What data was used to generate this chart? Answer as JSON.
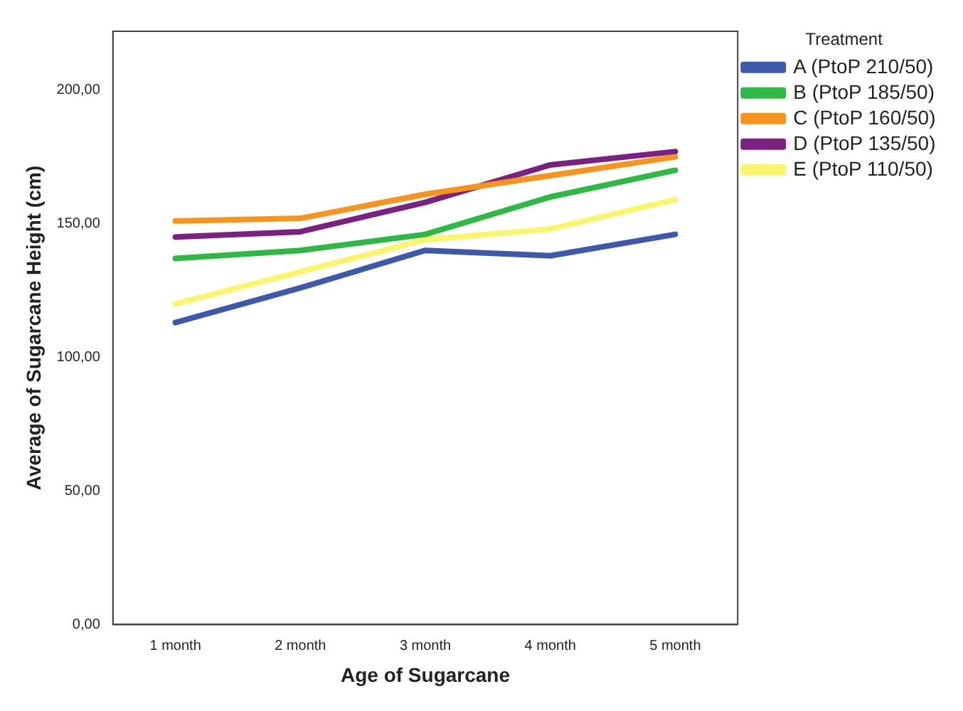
{
  "chart_data": {
    "type": "line",
    "xlabel": "Age of Sugarcane",
    "ylabel": "Average of Sugarcane Height (cm)",
    "legend_title": "Treatment",
    "legend": "right",
    "grid": false,
    "marker": "none",
    "line_style": "solid",
    "categories": [
      "1 month",
      "2 month",
      "3 month",
      "4 month",
      "5 month"
    ],
    "ylim": [
      0,
      222
    ],
    "yticks": [
      {
        "value": 0,
        "label": "0,00"
      },
      {
        "value": 50,
        "label": "50,00"
      },
      {
        "value": 100,
        "label": "100,00"
      },
      {
        "value": 150,
        "label": "150,00"
      },
      {
        "value": 200,
        "label": "200,00"
      }
    ],
    "series": [
      {
        "name": "A (PtoP 210/50)",
        "color": "#3e58ac",
        "values": [
          113,
          126,
          140,
          138,
          146
        ]
      },
      {
        "name": "B (PtoP 185/50)",
        "color": "#2eb844",
        "values": [
          137,
          140,
          146,
          160,
          170
        ]
      },
      {
        "name": "C (PtoP 160/50)",
        "color": "#f7941e",
        "values": [
          151,
          152,
          161,
          168,
          175
        ]
      },
      {
        "name": "D (PtoP 135/50)",
        "color": "#7a2182",
        "values": [
          145,
          147,
          158,
          172,
          177
        ]
      },
      {
        "name": "E (PtoP 110/50)",
        "color": "#f9f56c",
        "values": [
          120,
          132,
          144,
          148,
          159
        ]
      }
    ]
  }
}
